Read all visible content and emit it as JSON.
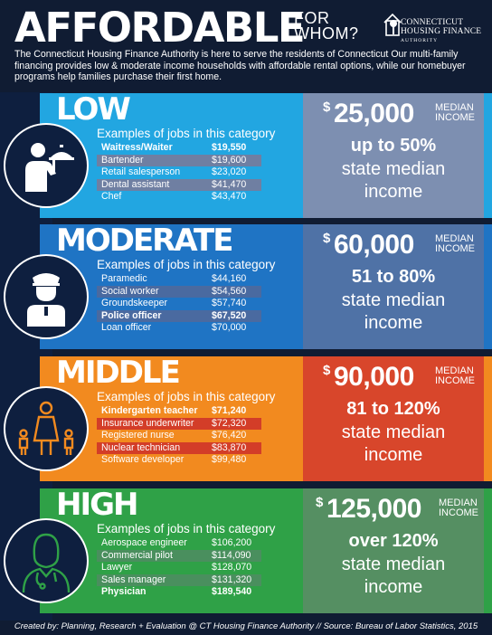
{
  "header": {
    "title_big": "AFFORDABLE",
    "title_small_1": "FOR",
    "title_small_2": "WHOM?",
    "logo": {
      "line1": "CONNECTICUT",
      "line2": "HOUSING FINANCE",
      "line3": "AUTHORITY",
      "icon": "house-tree-logo-icon"
    },
    "intro": "The Connecticut Housing Finance Authority is here to serve the residents of Connecticut Our multi-family financing provides low & moderate income households with affordable rental options, while our homebuyer programs help families purchase their first home."
  },
  "colors": {
    "background": "#101c33",
    "low": "#22a6e1",
    "moderate": "#1f74c4",
    "middle": "#f28a1f",
    "high": "#2fa147"
  },
  "sections": [
    {
      "title": "LOW",
      "icon": "waiter-icon",
      "examples_label": "Examples of jobs in this category",
      "jobs": [
        {
          "name": "Waitress/Waiter",
          "salary": "$19,550",
          "highlight": true
        },
        {
          "name": "Bartender",
          "salary": "$19,600",
          "highlight": false
        },
        {
          "name": "Retail salesperson",
          "salary": "$23,020",
          "highlight": false
        },
        {
          "name": "Dental assistant",
          "salary": "$41,470",
          "highlight": false
        },
        {
          "name": "Chef",
          "salary": "$43,470",
          "highlight": false
        }
      ],
      "dollar_sign": "$",
      "median_value": "25,000",
      "median_label_1": "MEDIAN",
      "median_label_2": "INCOME",
      "range": "up to 50%",
      "range_sub_1": "state median",
      "range_sub_2": "income"
    },
    {
      "title": "MODERATE",
      "icon": "police-officer-icon",
      "examples_label": "Examples of jobs in this category",
      "jobs": [
        {
          "name": "Paramedic",
          "salary": "$44,160",
          "highlight": false
        },
        {
          "name": "Social worker",
          "salary": "$54,560",
          "highlight": false
        },
        {
          "name": "Groundskeeper",
          "salary": "$57,740",
          "highlight": false
        },
        {
          "name": "Police officer",
          "salary": "$67,520",
          "highlight": true
        },
        {
          "name": "Loan officer",
          "salary": "$70,000",
          "highlight": false
        }
      ],
      "dollar_sign": "$",
      "median_value": "60,000",
      "median_label_1": "MEDIAN",
      "median_label_2": "INCOME",
      "range": "51 to 80%",
      "range_sub_1": "state median",
      "range_sub_2": "income"
    },
    {
      "title": "MIDDLE",
      "icon": "teacher-with-children-icon",
      "examples_label": "Examples of jobs in this category",
      "jobs": [
        {
          "name": "Kindergarten teacher",
          "salary": "$71,240",
          "highlight": true
        },
        {
          "name": "Insurance underwriter",
          "salary": "$72,320",
          "highlight": false
        },
        {
          "name": "Registered nurse",
          "salary": "$76,420",
          "highlight": false
        },
        {
          "name": "Nuclear technician",
          "salary": "$83,870",
          "highlight": false
        },
        {
          "name": "Software developer",
          "salary": "$99,480",
          "highlight": false
        }
      ],
      "dollar_sign": "$",
      "median_value": "90,000",
      "median_label_1": "MEDIAN",
      "median_label_2": "INCOME",
      "range": "81 to 120%",
      "range_sub_1": "state median",
      "range_sub_2": "income"
    },
    {
      "title": "HIGH",
      "icon": "physician-icon",
      "examples_label": "Examples of jobs in this category",
      "jobs": [
        {
          "name": "Aerospace engineer",
          "salary": "$106,200",
          "highlight": false
        },
        {
          "name": "Commercial pilot",
          "salary": "$114,090",
          "highlight": false
        },
        {
          "name": "Lawyer",
          "salary": "$128,070",
          "highlight": false
        },
        {
          "name": "Sales manager",
          "salary": "$131,320",
          "highlight": false
        },
        {
          "name": "Physician",
          "salary": "$189,540",
          "highlight": true
        }
      ],
      "dollar_sign": "$",
      "median_value": "125,000",
      "median_label_1": "MEDIAN",
      "median_label_2": "INCOME",
      "range": "over 120%",
      "range_sub_1": "state median",
      "range_sub_2": "income"
    }
  ],
  "footer": "Created by: Planning, Research + Evaluation @ CT Housing Finance Authority // Source: Bureau of Labor Statistics, 2015"
}
